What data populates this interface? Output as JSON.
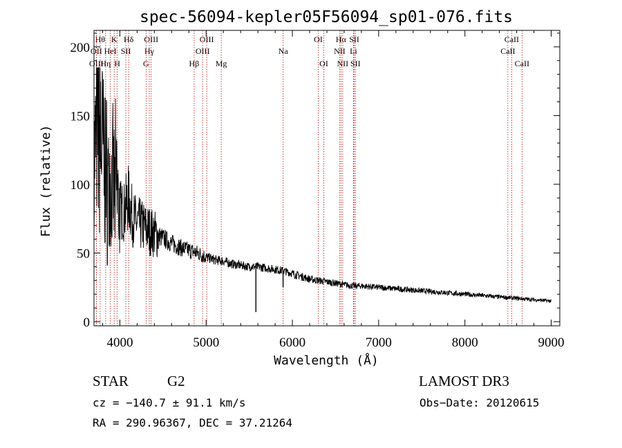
{
  "chart_data": {
    "type": "line",
    "title": "spec-56094-kepler05F56094_sp01-076.fits",
    "xlabel": "Wavelength (Å)",
    "ylabel": "Flux (relative)",
    "xlim": [
      3700,
      9100
    ],
    "ylim": [
      -3,
      212
    ],
    "xticks": [
      4000,
      5000,
      6000,
      7000,
      8000,
      9000
    ],
    "yticks": [
      0,
      50,
      100,
      150,
      200
    ],
    "series": [
      {
        "name": "flux",
        "x": [
          3700,
          3740,
          3780,
          3820,
          3860,
          3900,
          3950,
          4000,
          4050,
          4100,
          4150,
          4200,
          4250,
          4300,
          4350,
          4400,
          4500,
          4600,
          4700,
          4800,
          4900,
          5000,
          5100,
          5200,
          5300,
          5400,
          5500,
          5600,
          5700,
          5800,
          5900,
          6000,
          6100,
          6200,
          6300,
          6400,
          6500,
          6600,
          6700,
          6800,
          7000,
          7200,
          7400,
          7600,
          7800,
          8000,
          8200,
          8400,
          8600,
          8800,
          9000
        ],
        "values": [
          110,
          150,
          135,
          115,
          100,
          95,
          98,
          82,
          80,
          90,
          75,
          72,
          70,
          68,
          66,
          64,
          61,
          57,
          54,
          52,
          50,
          47,
          45,
          44,
          42,
          41,
          40,
          40,
          39,
          38,
          37,
          35,
          33,
          31,
          30,
          29,
          28,
          27,
          26,
          26,
          25,
          24,
          23,
          22,
          21,
          20,
          19,
          18,
          17,
          16,
          15
        ]
      }
    ],
    "features": [
      {
        "name": "spike_5577",
        "x": 5577,
        "y_top": 40,
        "y_bottom": 7
      },
      {
        "name": "dip_5890",
        "x": 5892,
        "y_top": 38,
        "y_bottom": 25
      }
    ],
    "lines": [
      {
        "label": "Hθ",
        "x": 3771,
        "row": 0
      },
      {
        "label": "OII",
        "x": 3727,
        "row": 1
      },
      {
        "label": "OIII",
        "x": 3727,
        "row": 2
      },
      {
        "label": "K",
        "x": 3934,
        "row": 0
      },
      {
        "label": "HeI",
        "x": 3889,
        "row": 1
      },
      {
        "label": "Hη",
        "x": 3835,
        "row": 2
      },
      {
        "label": "SII",
        "x": 4069,
        "row": 1
      },
      {
        "label": "H",
        "x": 3969,
        "row": 2
      },
      {
        "label": "Hδ",
        "x": 4102,
        "row": 0
      },
      {
        "label": "OIII",
        "x": 4363,
        "row": 0
      },
      {
        "label": "Hγ",
        "x": 4341,
        "row": 1
      },
      {
        "label": "G",
        "x": 4304,
        "row": 2
      },
      {
        "label": "OIII",
        "x": 5007,
        "row": 0
      },
      {
        "label": "OIII",
        "x": 4959,
        "row": 1
      },
      {
        "label": "Hβ",
        "x": 4861,
        "row": 2
      },
      {
        "label": "Mg",
        "x": 5175,
        "row": 2
      },
      {
        "label": "Na",
        "x": 5893,
        "row": 1
      },
      {
        "label": "OI",
        "x": 6300,
        "row": 0
      },
      {
        "label": "OI",
        "x": 6364,
        "row": 2
      },
      {
        "label": "Hα",
        "x": 6563,
        "row": 0
      },
      {
        "label": "SII",
        "x": 6717,
        "row": 0
      },
      {
        "label": "NII",
        "x": 6548,
        "row": 1
      },
      {
        "label": "Li",
        "x": 6708,
        "row": 1
      },
      {
        "label": "NII",
        "x": 6583,
        "row": 2
      },
      {
        "label": "SII",
        "x": 6731,
        "row": 2
      },
      {
        "label": "CaII",
        "x": 8542,
        "row": 0
      },
      {
        "label": "CaII",
        "x": 8498,
        "row": 1
      },
      {
        "label": "CaII",
        "x": 8662,
        "row": 2
      }
    ],
    "colors": {
      "axis": "#000000",
      "spectrum": "#000000",
      "line_marker": "#c00000",
      "background": "#ffffff"
    }
  },
  "info": {
    "object_class": "STAR",
    "subclass": "G2",
    "survey": "LAMOST DR3",
    "redshift": "cz = −140.7 ± 91.1 km/s",
    "obs_date": "Obs−Date: 20120615",
    "coords": "RA = 290.96367, DEC =  37.21264"
  }
}
